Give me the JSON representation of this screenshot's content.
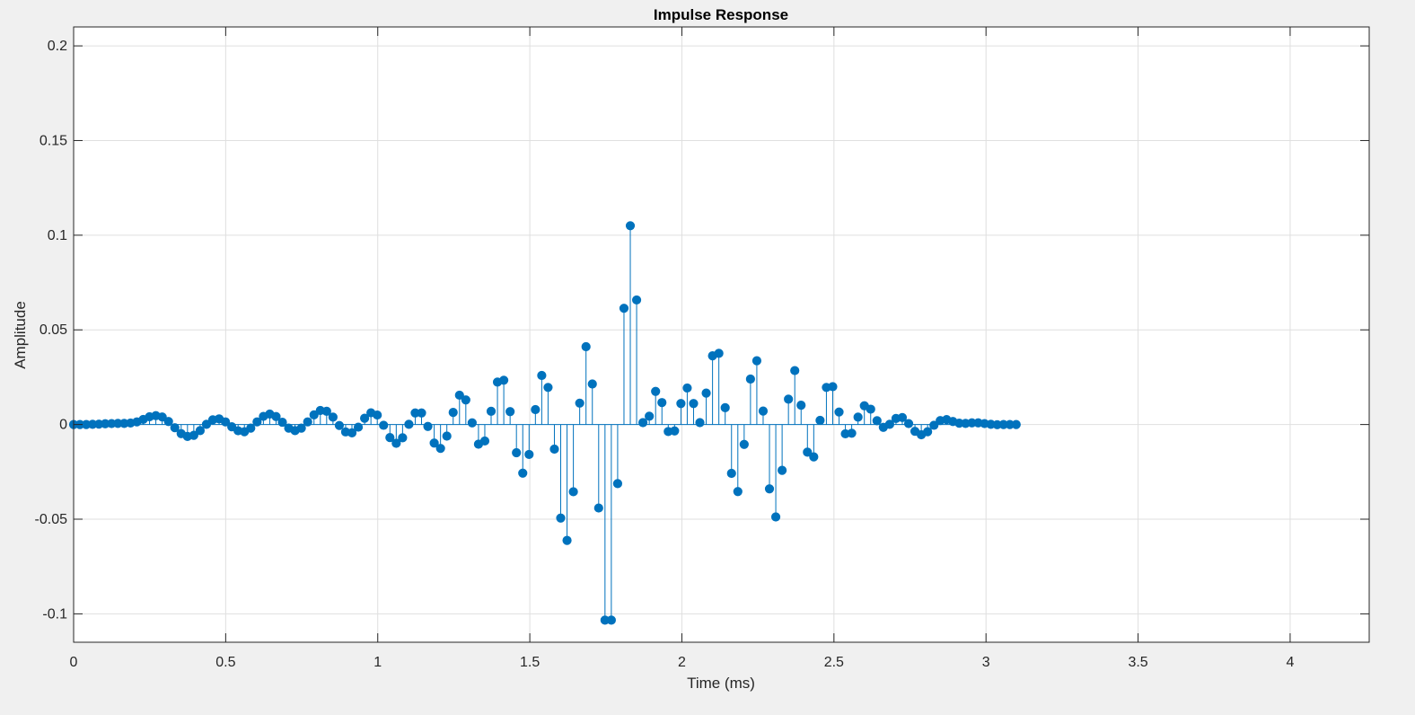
{
  "chart_data": {
    "type": "stem",
    "title": "Impulse Response",
    "xlabel": "Time (ms)",
    "ylabel": "Amplitude",
    "xlim": [
      0,
      4.26
    ],
    "ylim": [
      -0.115,
      0.21
    ],
    "xticks": [
      0,
      0.5,
      1,
      1.5,
      2,
      2.5,
      3,
      3.5,
      4
    ],
    "xtick_labels": [
      "0",
      "0.5",
      "1",
      "1.5",
      "2",
      "2.5",
      "3",
      "3.5",
      "4"
    ],
    "yticks": [
      -0.1,
      -0.05,
      0,
      0.05,
      0.1,
      0.15,
      0.2
    ],
    "ytick_labels": [
      "-0.1",
      "-0.05",
      "0",
      "0.05",
      "0.1",
      "0.15",
      "0.2"
    ],
    "grid": true,
    "box": true,
    "sample_step": 0.0208,
    "series": [
      {
        "color": "#0072bd",
        "values": [
          0.0,
          0.0,
          0.0,
          0.0001,
          0.0002,
          0.0004,
          0.0005,
          0.0006,
          0.0006,
          0.0008,
          0.0014,
          0.0027,
          0.0041,
          0.0047,
          0.004,
          0.0016,
          -0.0017,
          -0.0048,
          -0.0063,
          -0.0057,
          -0.0032,
          0.0001,
          0.0025,
          0.003,
          0.0014,
          -0.0012,
          -0.0033,
          -0.0038,
          -0.0019,
          0.0014,
          0.0043,
          0.0055,
          0.0042,
          0.0012,
          -0.0019,
          -0.0032,
          -0.0019,
          0.0014,
          0.0051,
          0.0074,
          0.007,
          0.0039,
          -0.0005,
          -0.0039,
          -0.0044,
          -0.0014,
          0.0033,
          0.0062,
          0.005,
          -0.0004,
          -0.0069,
          -0.0099,
          -0.007,
          0.0001,
          0.0061,
          0.0061,
          -0.001,
          -0.0098,
          -0.0126,
          -0.0061,
          0.0064,
          0.0155,
          0.013,
          0.0009,
          -0.0104,
          -0.0087,
          0.007,
          0.0224,
          0.0234,
          0.0068,
          -0.0149,
          -0.0257,
          -0.0158,
          0.0079,
          0.0259,
          0.0196,
          -0.013,
          -0.0494,
          -0.0612,
          -0.0355,
          0.0113,
          0.0411,
          0.0214,
          -0.0441,
          -0.1033,
          -0.1033,
          -0.0312,
          0.0614,
          0.105,
          0.0658,
          0.001,
          0.0044,
          0.0175,
          0.0116,
          -0.0037,
          -0.0034,
          0.0111,
          0.0193,
          0.0111,
          0.001,
          0.0166,
          0.0363,
          0.0376,
          0.0089,
          -0.0258,
          -0.0354,
          -0.0105,
          0.024,
          0.0337,
          0.0071,
          -0.034,
          -0.0488,
          -0.0242,
          0.0134,
          0.0285,
          0.0102,
          -0.0146,
          -0.0171,
          0.0022,
          0.0196,
          0.02,
          0.0066,
          -0.0049,
          -0.0046,
          0.0039,
          0.0099,
          0.0081,
          0.002,
          -0.0015,
          0.0001,
          0.0032,
          0.0037,
          0.0005,
          -0.0036,
          -0.0054,
          -0.0038,
          -0.0004,
          0.0021,
          0.0026,
          0.0016,
          0.0007,
          0.0006,
          0.0009,
          0.0009,
          0.0005,
          0.0001,
          -0.0001,
          0.0,
          0.0,
          0.0
        ]
      }
    ]
  }
}
